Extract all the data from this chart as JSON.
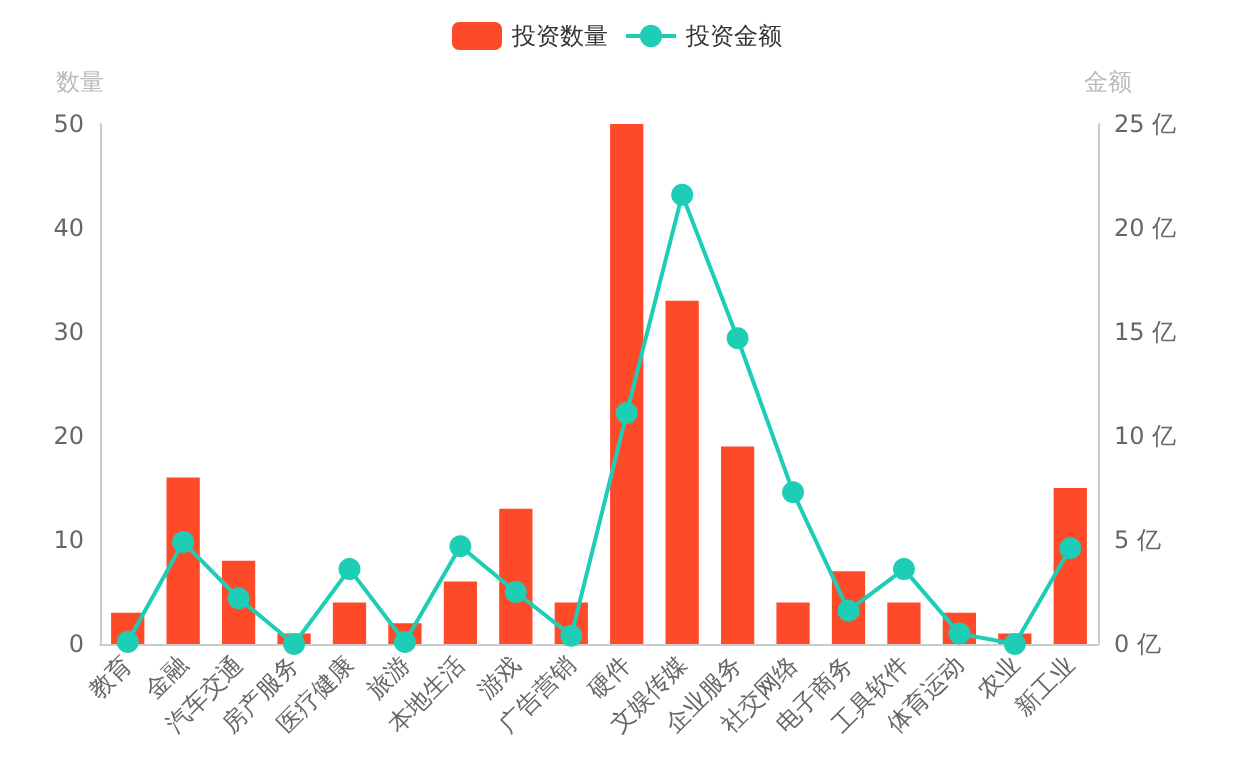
{
  "chart_data": {
    "type": "bar",
    "categories": [
      "教育",
      "金融",
      "汽车交通",
      "房产服务",
      "医疗健康",
      "旅游",
      "本地生活",
      "游戏",
      "广告营销",
      "硬件",
      "文娱传媒",
      "企业服务",
      "社交网络",
      "电子商务",
      "工具软件",
      "体育运动",
      "农业",
      "新工业"
    ],
    "series": [
      {
        "name": "投资数量",
        "color": "#ff4a2a",
        "values": [
          3,
          16,
          8,
          1,
          4,
          2,
          6,
          13,
          4,
          50,
          33,
          19,
          4,
          7,
          4,
          3,
          1,
          15
        ]
      },
      {
        "name": "投资金额",
        "type": "line",
        "axis": "y2",
        "color": "#1ecdb5",
        "values": [
          0.1,
          4.9,
          2.2,
          0,
          3.6,
          0.1,
          4.7,
          2.5,
          0.4,
          11.1,
          21.6,
          14.7,
          7.3,
          1.6,
          3.6,
          0.5,
          0,
          4.6
        ]
      }
    ],
    "ylabel": "数量",
    "y2label": "金额",
    "ylim": [
      0,
      50
    ],
    "yticks": [
      0,
      10,
      20,
      30,
      40,
      50
    ],
    "y2lim": [
      0,
      25
    ],
    "y2ticks": [
      {
        "value": 0,
        "label": "0 亿"
      },
      {
        "value": 5,
        "label": "5 亿"
      },
      {
        "value": 10,
        "label": "10 亿"
      },
      {
        "value": 15,
        "label": "15 亿"
      },
      {
        "value": 20,
        "label": "20 亿"
      },
      {
        "value": 25,
        "label": "25 亿"
      }
    ],
    "legend": "top",
    "grid": false,
    "marker": "circle"
  }
}
